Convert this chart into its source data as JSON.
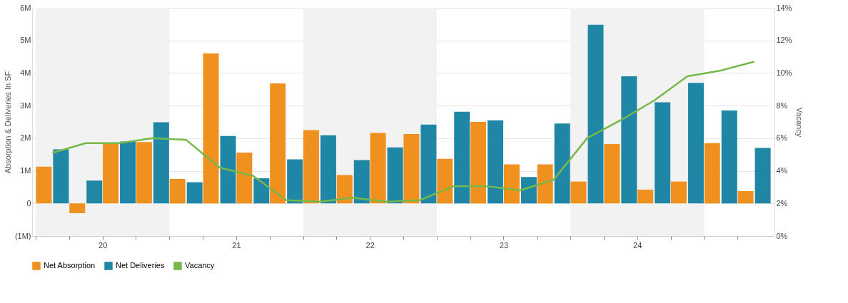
{
  "chart_data": {
    "type": "bar",
    "ylabel": "Absorption & Deliveries In SF",
    "y2label": "Vacancy",
    "x": [
      20.125,
      20.375,
      20.625,
      20.875,
      21.125,
      21.375,
      21.625,
      21.875,
      22.125,
      22.375,
      22.625,
      22.875,
      23.125,
      23.375,
      23.625,
      23.875,
      24.125,
      24.375,
      24.625,
      24.875,
      25.125,
      25.375
    ],
    "xlim": [
      20,
      25.5
    ],
    "xticks": [
      {
        "value": 20,
        "label": null
      },
      {
        "value": 20.25,
        "label": null
      },
      {
        "value": 20.5,
        "label": "20"
      },
      {
        "value": 20.75,
        "label": null
      },
      {
        "value": 21,
        "label": null
      },
      {
        "value": 21.25,
        "label": null
      },
      {
        "value": 21.5,
        "label": "21"
      },
      {
        "value": 21.75,
        "label": null
      },
      {
        "value": 22,
        "label": null
      },
      {
        "value": 22.25,
        "label": null
      },
      {
        "value": 22.5,
        "label": "22"
      },
      {
        "value": 22.75,
        "label": null
      },
      {
        "value": 23,
        "label": null
      },
      {
        "value": 23.25,
        "label": null
      },
      {
        "value": 23.5,
        "label": "23"
      },
      {
        "value": 23.75,
        "label": null
      },
      {
        "value": 24,
        "label": null
      },
      {
        "value": 24.25,
        "label": null
      },
      {
        "value": 24.5,
        "label": "24"
      },
      {
        "value": 24.75,
        "label": null
      },
      {
        "value": 25,
        "label": null
      },
      {
        "value": 25.25,
        "label": null
      }
    ],
    "ylim": [
      -1000000,
      6000000
    ],
    "yticks": [
      {
        "value": -1000000,
        "label": "(1M)"
      },
      0,
      {
        "value": 1000000,
        "label": "1M"
      },
      {
        "value": 2000000,
        "label": "2M"
      },
      {
        "value": 3000000,
        "label": "3M"
      },
      {
        "value": 4000000,
        "label": "4M"
      },
      {
        "value": 5000000,
        "label": "5M"
      },
      {
        "value": 6000000,
        "label": "6M"
      }
    ],
    "y2lim": [
      0,
      14
    ],
    "y2ticks": [
      {
        "value": 0,
        "label": "0%"
      },
      {
        "value": 2,
        "label": "2%"
      },
      {
        "value": 4,
        "label": "4%"
      },
      {
        "value": 6,
        "label": "6%"
      },
      {
        "value": 8,
        "label": "8%"
      },
      {
        "value": 10,
        "label": "10%"
      },
      {
        "value": 12,
        "label": "12%"
      },
      {
        "value": 14,
        "label": "14%"
      }
    ],
    "series": [
      {
        "name": "Net Absorption",
        "color": "#f0901e",
        "values": [
          1130000,
          -300000,
          1850000,
          1880000,
          750000,
          4600000,
          1560000,
          3680000,
          2250000,
          870000,
          2160000,
          2130000,
          1370000,
          2500000,
          1200000,
          1200000,
          670000,
          1820000,
          420000,
          670000,
          1850000,
          380000
        ]
      },
      {
        "name": "Net Deliveries",
        "color": "#1f87a5",
        "values": [
          1660000,
          700000,
          1900000,
          2490000,
          650000,
          2070000,
          770000,
          1350000,
          2090000,
          1330000,
          1720000,
          2420000,
          2810000,
          2550000,
          810000,
          2450000,
          5480000,
          3900000,
          3100000,
          3700000,
          2850000,
          1700000
        ]
      },
      {
        "name": "Vacancy",
        "type": "line",
        "axis": "y2",
        "color": "#77b84a",
        "values": [
          5.1,
          5.7,
          5.7,
          6.0,
          5.9,
          4.2,
          3.7,
          2.2,
          2.1,
          2.35,
          2.1,
          2.2,
          3.05,
          3.05,
          2.8,
          3.45,
          6.0,
          7.1,
          8.3,
          9.8,
          10.15,
          10.7
        ]
      }
    ],
    "bands": [
      {
        "axis": "x",
        "from": 20,
        "to": 21,
        "color": "#f2f2f2"
      },
      {
        "axis": "x",
        "from": 22,
        "to": 23,
        "color": "#f2f2f2"
      },
      {
        "axis": "x",
        "from": 24,
        "to": 25,
        "color": "#f2f2f2"
      }
    ],
    "grid": "y",
    "legend": "bottom"
  }
}
